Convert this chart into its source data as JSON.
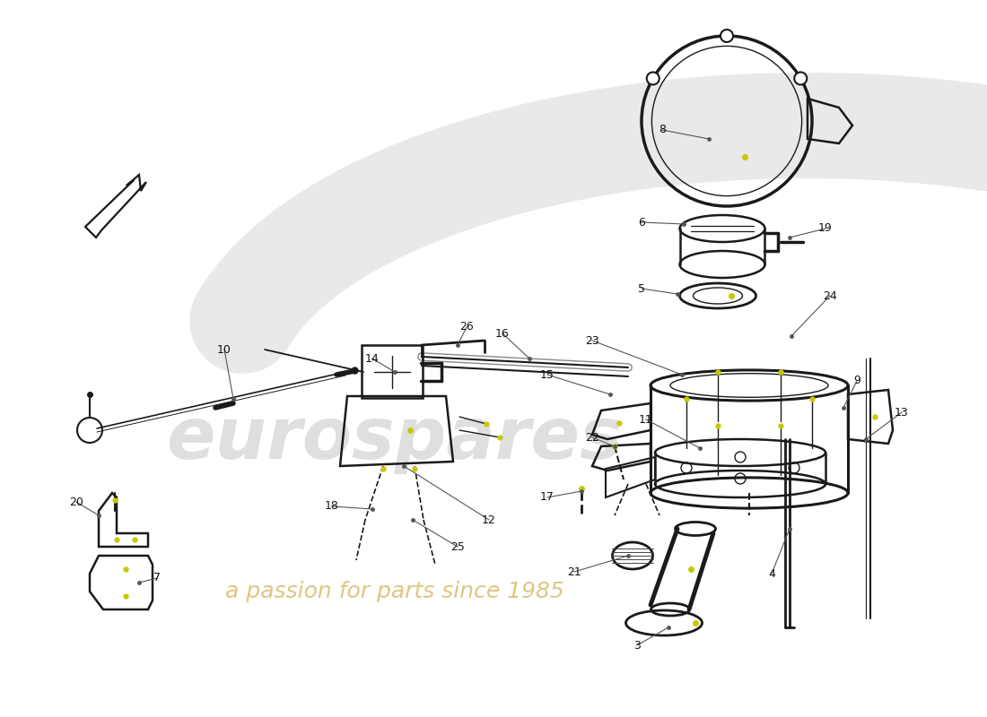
{
  "bg_color": "#ffffff",
  "part_color": "#1a1a1a",
  "part_color2": "#2a2a2a",
  "yellow_color": "#c8c800",
  "label_color": "#111111",
  "leader_color": "#555555",
  "watermark1": "eurospares",
  "watermark2": "a passion for parts since 1985",
  "figsize": [
    11.0,
    8.0
  ],
  "dpi": 100
}
